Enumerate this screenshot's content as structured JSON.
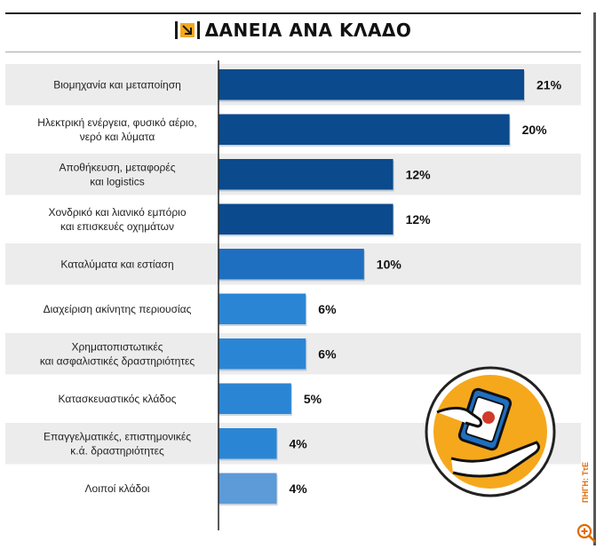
{
  "title": "ΔΑΝΕΙΑ ΑΝΑ ΚΛΑΔΟ",
  "source_label": "ΠΗΓΗ: ΤτΕ",
  "colors": {
    "dark_blue": "#0b4a8c",
    "mid_blue": "#1f6fc0",
    "light_blue": "#2a86d4",
    "pale_blue": "#5c9ad8",
    "row_bg": "#ececec",
    "accent_orange": "#f5a81c"
  },
  "chart_data": {
    "type": "bar",
    "orientation": "horizontal",
    "title": "ΔΑΝΕΙΑ ΑΝΑ ΚΛΑΔΟ",
    "categories": [
      [
        "Βιομηχανία και μεταποίηση"
      ],
      [
        "Ηλεκτρική ενέργεια, φυσικό αέριο,",
        "νερό και λύματα"
      ],
      [
        "Αποθήκευση, μεταφορές",
        "και logistics"
      ],
      [
        "Χονδρικό και λιανικό εμπόριο",
        "και επισκευές οχημάτων"
      ],
      [
        "Καταλύματα και εστίαση"
      ],
      [
        "Διαχείριση ακίνητης περιουσίας"
      ],
      [
        "Χρηματοπιστωτικές",
        "και ασφαλιστικές δραστηριότητες"
      ],
      [
        "Κατασκευαστικός κλάδος"
      ],
      [
        "Επαγγελματικές, επιστημονικές",
        "κ.ά. δραστηριότητες"
      ],
      [
        "Λοιποί κλάδοι"
      ]
    ],
    "values": [
      21,
      20,
      12,
      12,
      10,
      6,
      6,
      5,
      4,
      4
    ],
    "value_labels": [
      "21%",
      "20%",
      "12%",
      "12%",
      "10%",
      "6%",
      "6%",
      "5%",
      "4%",
      "4%"
    ],
    "bar_colors": [
      "#0b4a8c",
      "#0b4a8c",
      "#0b4a8c",
      "#0b4a8c",
      "#1f6fc0",
      "#2a86d4",
      "#2a86d4",
      "#2a86d4",
      "#2a86d4",
      "#5c9ad8"
    ],
    "unit": "%",
    "grid": false
  }
}
